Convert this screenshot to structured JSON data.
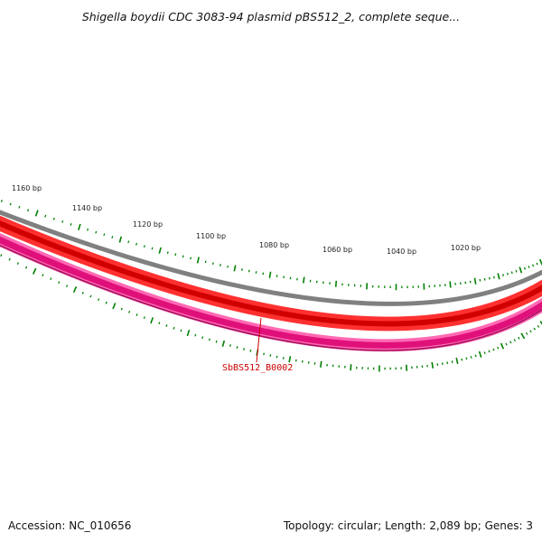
{
  "title": "Shigella boydii CDC 3083-94 plasmid pBS512_2, complete seque...",
  "footer": {
    "accession": "Accession: NC_010656",
    "summary": "Topology: circular; Length: 2,089 bp; Genes: 3"
  },
  "map": {
    "length_bp": 2089,
    "major_ticks": [
      {
        "label": "1160 bp",
        "bp": 1160
      },
      {
        "label": "1140 bp",
        "bp": 1140
      },
      {
        "label": "1120 bp",
        "bp": 1120
      },
      {
        "label": "1100 bp",
        "bp": 1100
      },
      {
        "label": "1080 bp",
        "bp": 1080
      },
      {
        "label": "1060 bp",
        "bp": 1060
      },
      {
        "label": "1040 bp",
        "bp": 1040
      },
      {
        "label": "1020 bp",
        "bp": 1020
      }
    ],
    "gene_labels": [
      {
        "name": "SbBS512_B0002",
        "color": "#cc0000"
      }
    ],
    "colors": {
      "backbone": "#808080",
      "gene_track": "#ff0000",
      "gene_track_dark": "#cc0000",
      "gc_track": "#ff1493",
      "gc_track_dark": "#c71585",
      "ticks": "#008000"
    }
  }
}
